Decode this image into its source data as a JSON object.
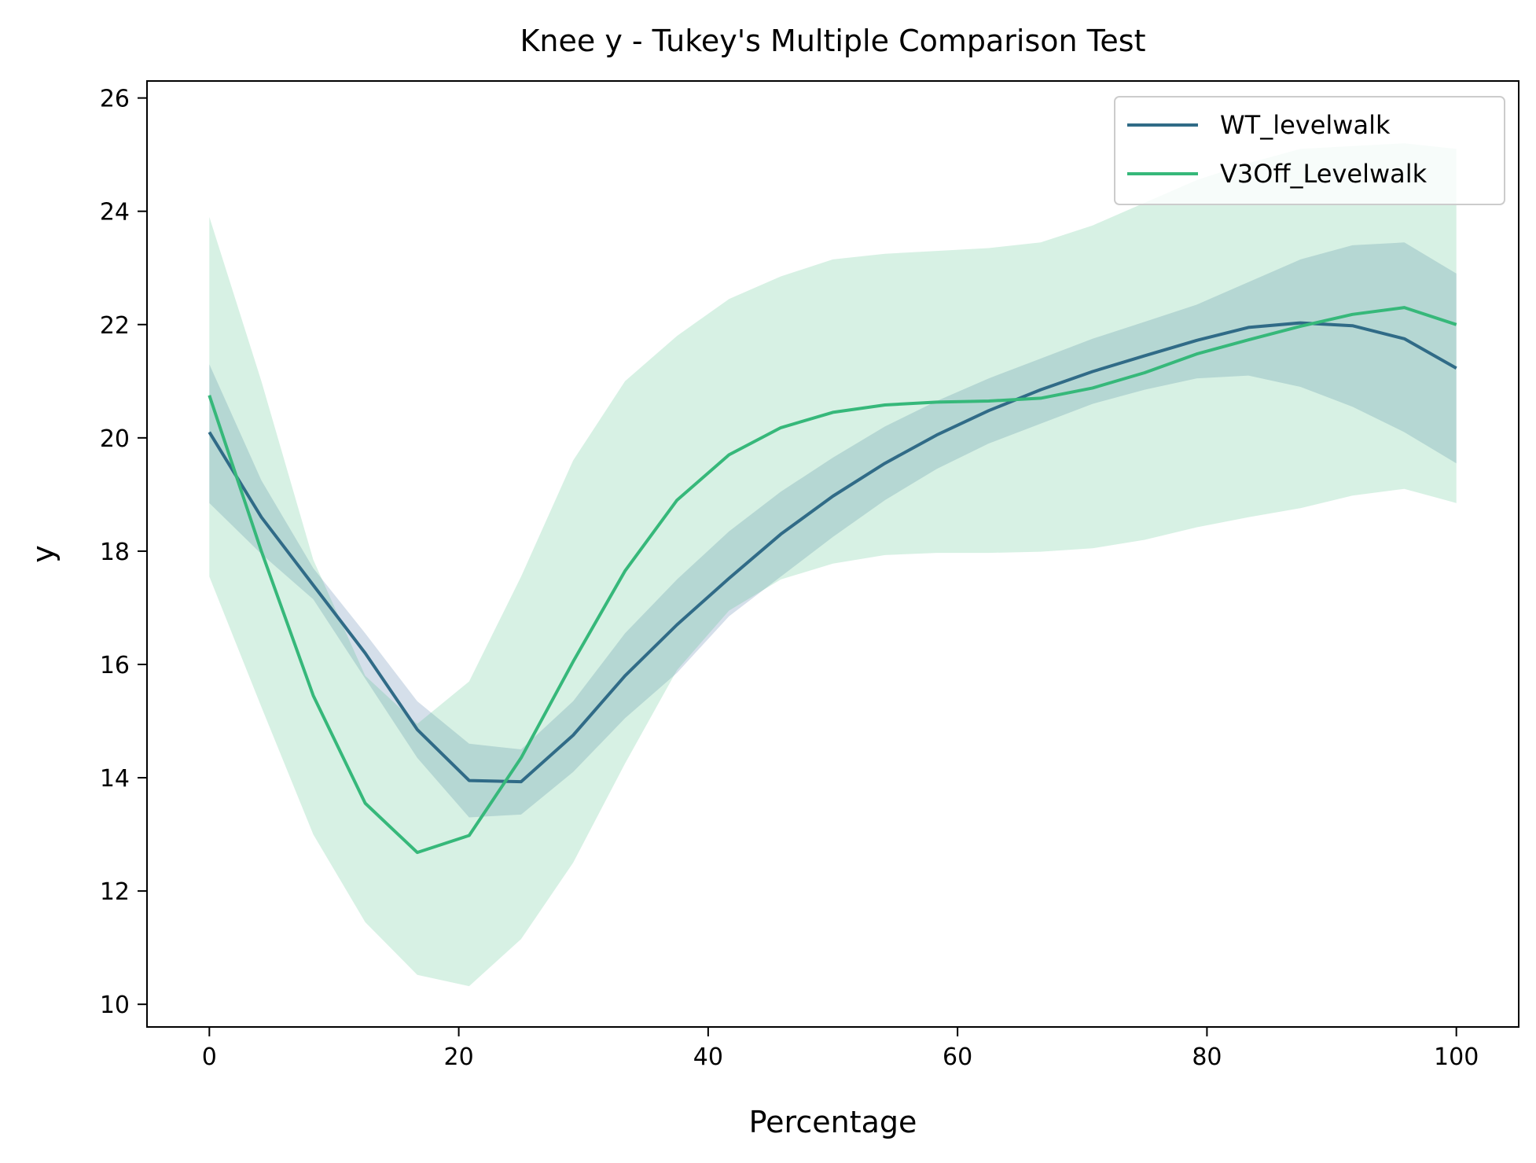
{
  "chart_data": {
    "type": "line",
    "title": "Knee y - Tukey's Multiple Comparison Test",
    "xlabel": "Percentage",
    "ylabel": "y",
    "xlim": [
      -5,
      105
    ],
    "ylim": [
      9.6,
      26.3
    ],
    "xticks": [
      0,
      20,
      40,
      60,
      80,
      100
    ],
    "yticks": [
      10,
      12,
      14,
      16,
      18,
      20,
      22,
      24,
      26
    ],
    "grid": false,
    "legend_position": "top-right",
    "x": [
      0,
      4.17,
      8.33,
      12.5,
      16.67,
      20.83,
      25,
      29.17,
      33.33,
      37.5,
      41.67,
      45.83,
      50,
      54.17,
      58.33,
      62.5,
      66.67,
      70.83,
      75,
      79.17,
      83.33,
      87.5,
      91.67,
      95.83,
      100
    ],
    "series": [
      {
        "name": "WT_levelwalk",
        "color": "#306b87",
        "band_color": "#3f6f9f",
        "values": [
          20.1,
          18.6,
          17.4,
          16.2,
          14.85,
          13.95,
          13.93,
          14.75,
          15.8,
          16.7,
          17.52,
          18.3,
          18.97,
          19.55,
          20.05,
          20.48,
          20.85,
          21.17,
          21.45,
          21.72,
          21.95,
          22.03,
          21.98,
          21.75,
          21.23
        ],
        "lower": [
          18.85,
          17.95,
          17.15,
          15.75,
          14.35,
          13.3,
          13.35,
          14.1,
          15.05,
          15.85,
          16.85,
          17.55,
          18.25,
          18.9,
          19.45,
          19.9,
          20.25,
          20.6,
          20.85,
          21.05,
          21.1,
          20.9,
          20.55,
          20.1,
          19.55
        ],
        "upper": [
          21.3,
          19.25,
          17.7,
          16.55,
          15.35,
          14.6,
          14.5,
          15.35,
          16.55,
          17.5,
          18.35,
          19.05,
          19.65,
          20.2,
          20.65,
          21.05,
          21.4,
          21.75,
          22.05,
          22.35,
          22.75,
          23.15,
          23.4,
          23.45,
          22.9
        ]
      },
      {
        "name": "V3Off_Levelwalk",
        "color": "#36b87a",
        "band_color": "#36b87a",
        "values": [
          20.75,
          18.0,
          15.45,
          13.55,
          12.68,
          12.98,
          14.35,
          16.05,
          17.65,
          18.9,
          19.7,
          20.18,
          20.45,
          20.58,
          20.63,
          20.65,
          20.7,
          20.88,
          21.15,
          21.48,
          21.73,
          21.97,
          22.18,
          22.3,
          22.0
        ],
        "lower": [
          17.55,
          15.25,
          13.0,
          11.45,
          10.52,
          10.32,
          11.15,
          12.5,
          14.25,
          15.9,
          16.95,
          17.5,
          17.78,
          17.93,
          17.97,
          17.97,
          17.99,
          18.05,
          18.2,
          18.42,
          18.6,
          18.76,
          18.98,
          19.1,
          18.85
        ],
        "upper": [
          23.9,
          21.0,
          17.85,
          15.8,
          14.95,
          15.7,
          17.55,
          19.6,
          21.0,
          21.8,
          22.45,
          22.85,
          23.15,
          23.25,
          23.3,
          23.35,
          23.45,
          23.75,
          24.15,
          24.55,
          24.85,
          25.1,
          25.15,
          25.2,
          25.1
        ]
      }
    ]
  }
}
